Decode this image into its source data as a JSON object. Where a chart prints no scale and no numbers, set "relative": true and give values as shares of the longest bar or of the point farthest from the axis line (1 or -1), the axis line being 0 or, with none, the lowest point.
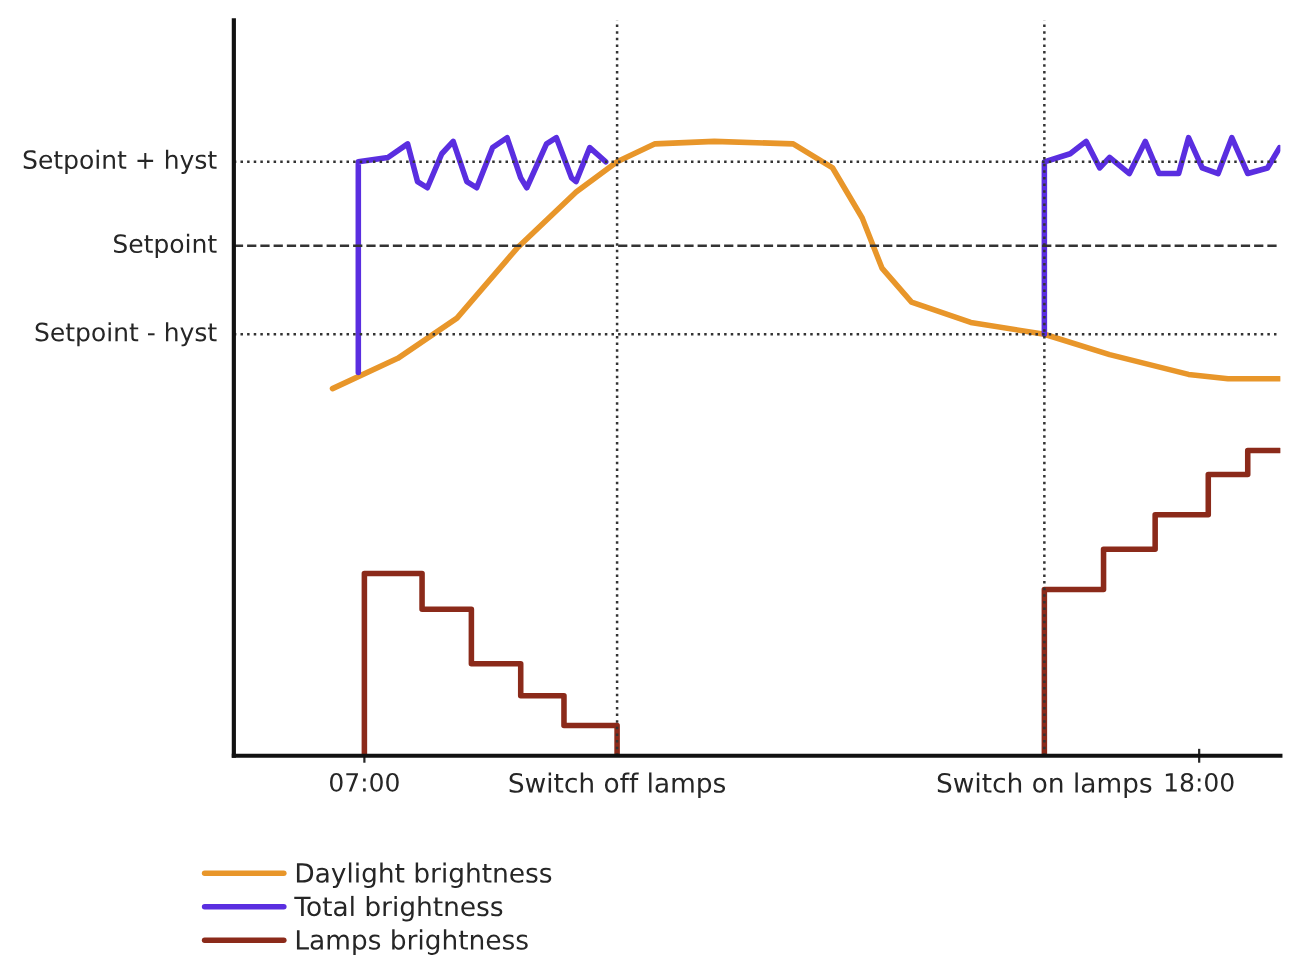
{
  "chart_data": {
    "type": "line",
    "relative": true,
    "xlim": [
      5.28,
      19.07
    ],
    "xticks": [
      {
        "value": 7,
        "label": "07:00"
      },
      {
        "value": 18,
        "label": "18:00"
      }
    ],
    "series": [
      {
        "name": "Daylight brightness",
        "color": "#e8962a",
        "x": [
          6.58,
          7.44,
          8.22,
          9.01,
          9.79,
          10.33,
          10.83,
          11.61,
          12.65,
          13.17,
          13.56,
          13.82,
          14.21,
          14.99,
          15.96,
          16.82,
          17.86,
          18.38,
          19.06
        ],
        "values": [
          0.594,
          0.643,
          0.708,
          0.821,
          0.912,
          0.961,
          0.99,
          0.994,
          0.99,
          0.951,
          0.87,
          0.789,
          0.734,
          0.701,
          0.682,
          0.649,
          0.617,
          0.61,
          0.61
        ]
      },
      {
        "name": "Total brightness",
        "color": "#5a2ee0",
        "x": [
          6.92,
          6.92,
          7.31,
          7.57,
          7.7,
          7.83,
          8.02,
          8.17,
          8.35,
          8.48,
          8.69,
          8.88,
          9.06,
          9.14,
          9.4,
          9.53,
          9.73,
          9.79,
          9.97,
          10.18,
          12,
          15.96,
          15.96,
          16.3,
          16.51,
          16.69,
          16.82,
          17.08,
          17.29,
          17.47,
          17.73,
          17.86,
          18.04,
          18.25,
          18.43,
          18.64,
          18.9,
          19.06
        ],
        "values": [
          0.62,
          0.961,
          0.968,
          0.99,
          0.929,
          0.919,
          0.974,
          0.994,
          0.929,
          0.919,
          0.984,
          1.0,
          0.935,
          0.919,
          0.99,
          1.0,
          0.935,
          0.929,
          0.984,
          0.961,
          null,
          0.682,
          0.961,
          0.974,
          0.994,
          0.951,
          0.968,
          0.942,
          0.994,
          0.942,
          0.942,
          1.0,
          0.951,
          0.942,
          1.0,
          0.942,
          0.951,
          0.984
        ]
      },
      {
        "name": "Lamps brightness",
        "color": "#8b2a1a",
        "x": [
          7,
          7,
          7.76,
          7.76,
          8.41,
          8.41,
          9.06,
          9.06,
          9.63,
          9.63,
          10.33,
          10.33,
          12,
          15.96,
          15.96,
          16.74,
          16.74,
          17.42,
          17.42,
          18.12,
          18.12,
          18.64,
          18.64,
          19.06
        ],
        "values": [
          0,
          0.295,
          0.295,
          0.237,
          0.237,
          0.149,
          0.149,
          0.097,
          0.097,
          0.049,
          0.049,
          0,
          null,
          0,
          0.269,
          0.269,
          0.334,
          0.334,
          0.39,
          0.39,
          0.455,
          0.455,
          0.494,
          0.494
        ]
      }
    ],
    "ref_lines": [
      {
        "axis": "y",
        "value": 0.961,
        "label": "Setpoint + hyst",
        "line_style": "dotted",
        "color": "#333333"
      },
      {
        "axis": "y",
        "value": 0.825,
        "label": "Setpoint",
        "line_style": "dashed",
        "color": "#333333"
      },
      {
        "axis": "y",
        "value": 0.682,
        "label": "Setpoint - hyst",
        "line_style": "dotted",
        "color": "#333333"
      },
      {
        "axis": "x",
        "value": 10.33,
        "label": "Switch off lamps",
        "line_style": "dotted",
        "color": "#333333"
      },
      {
        "axis": "x",
        "value": 15.96,
        "label": "Switch on lamps",
        "line_style": "dotted",
        "color": "#333333"
      }
    ],
    "legend": "bottom left",
    "grid": false
  }
}
